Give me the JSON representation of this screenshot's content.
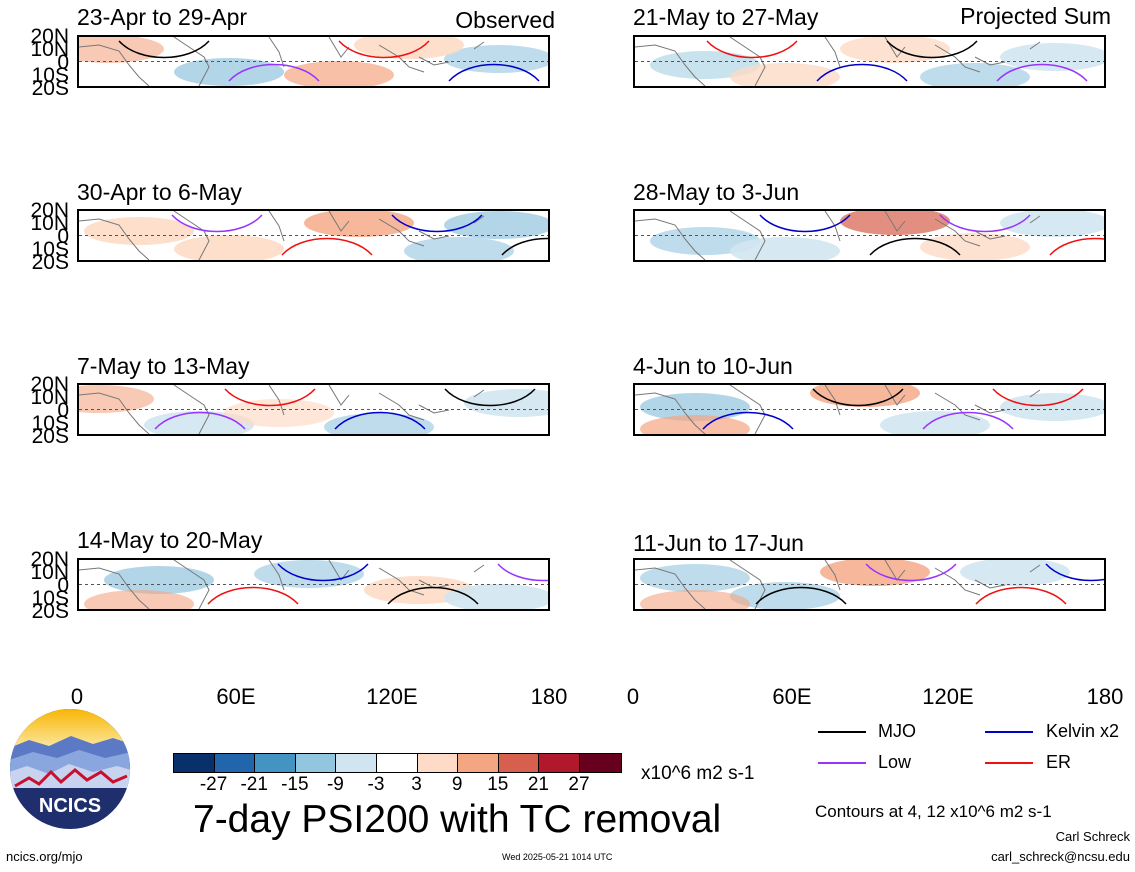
{
  "header": {
    "left_label": "Observed",
    "right_label": "Projected Sum"
  },
  "panels_left": [
    {
      "title": "23-Apr to 29-Apr"
    },
    {
      "title": "30-Apr to 6-May"
    },
    {
      "title": "7-May to 13-May"
    },
    {
      "title": "14-May to 20-May"
    }
  ],
  "panels_right": [
    {
      "title": "21-May to 27-May"
    },
    {
      "title": "28-May to 3-Jun"
    },
    {
      "title": "4-Jun to 10-Jun"
    },
    {
      "title": "11-Jun to 17-Jun"
    }
  ],
  "lat_labels": [
    "20N",
    "10N",
    "0",
    "10S",
    "20S"
  ],
  "lon_labels": [
    "0",
    "60E",
    "120E",
    "180"
  ],
  "colorbar": {
    "colors": [
      "#08306b",
      "#2166ac",
      "#4393c3",
      "#92c5de",
      "#d1e5f0",
      "#ffffff",
      "#fddbc7",
      "#f4a582",
      "#d6604d",
      "#b2182b",
      "#67001f"
    ],
    "labels": [
      "-27",
      "-21",
      "-15",
      "-9",
      "-3",
      "3",
      "9",
      "15",
      "21",
      "27"
    ],
    "unit": "x10^6 m2 s-1"
  },
  "legend": {
    "items": [
      {
        "label": "MJO",
        "color": "#000000"
      },
      {
        "label": "Kelvin x2",
        "color": "#0000cc"
      },
      {
        "label": "Low",
        "color": "#9933ff"
      },
      {
        "label": "ER",
        "color": "#ee1111"
      }
    ],
    "note": "Contours at 4, 12 x10^6 m2 s-1"
  },
  "main_title": "7-day PSI200 with TC removal",
  "logo_text": "NCICS",
  "footer": {
    "url": "ncics.org/mjo",
    "timestamp": "Wed 2025-05-21 1014 UTC",
    "author": "Carl Schreck",
    "email": "carl_schreck@ncsu.edu"
  },
  "chart_data": {
    "type": "heatmap",
    "title": "7-day PSI200 with TC removal",
    "variable": "200-hPa streamfunction anomaly (PSI200), TC removed",
    "units": "x10^6 m2 s-1",
    "x_range": [
      0,
      180
    ],
    "y_range": [
      -20,
      20
    ],
    "x_ticks": [
      "0",
      "60E",
      "120E",
      "180"
    ],
    "y_ticks": [
      "20N",
      "10N",
      "0",
      "10S",
      "20S"
    ],
    "color_levels": [
      -27,
      -21,
      -15,
      -9,
      -3,
      3,
      9,
      15,
      21,
      27
    ],
    "contour_levels": [
      4,
      12
    ],
    "contour_series": [
      "MJO",
      "Kelvin x2",
      "Low",
      "ER"
    ],
    "panels": [
      {
        "period": "23-Apr to 29-Apr",
        "kind": "Observed"
      },
      {
        "period": "30-Apr to 6-May",
        "kind": "Observed"
      },
      {
        "period": "7-May to 13-May",
        "kind": "Observed"
      },
      {
        "period": "14-May to 20-May",
        "kind": "Observed"
      },
      {
        "period": "21-May to 27-May",
        "kind": "Projected Sum"
      },
      {
        "period": "28-May to 3-Jun",
        "kind": "Projected Sum"
      },
      {
        "period": "4-Jun to 10-Jun",
        "kind": "Projected Sum"
      },
      {
        "period": "11-Jun to 17-Jun",
        "kind": "Projected Sum"
      }
    ]
  }
}
